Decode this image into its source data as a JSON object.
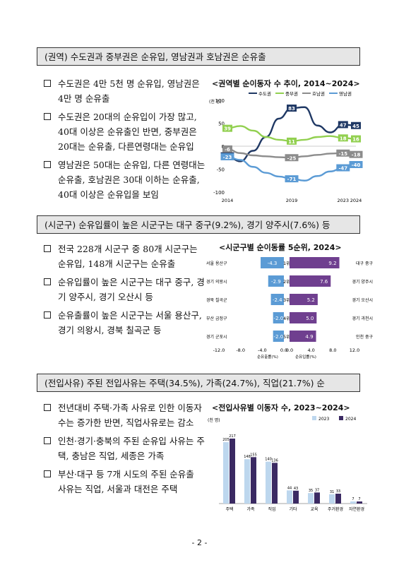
{
  "sections": [
    {
      "header": "(권역) 수도권과 중부권은 순유입, 영남권과 호남권은 순유출",
      "bullets": [
        "수도권은 4만 5천 명 순유입, 영남권은 4만 명 순유출",
        "수도권은 20대의 순유입이 가장 많고, 40대 이상은 순유출인 반면, 중부권은 20대는 순유출, 다른연령대는 순유입",
        "영남권은 50대는 순유입, 다른 연령대는 순유출, 호남권은 30대 이하는 순유출, 40대 이상은 순유입을 보임"
      ]
    },
    {
      "header": "(시군구) 순유입률이 높은 시군구는 대구 중구(9.2%), 경기 양주시(7.6%) 등",
      "bullets": [
        "전국 228개 시군구 중 80개 시군구는 순유입, 148개 시군구는 순유출",
        "순유입률이 높은 시군구는 대구 중구, 경기 양주시, 경기 오산시 등",
        "순유출률이 높은 시군구는 서울 용산구, 경기 의왕시, 경북 칠곡군 등"
      ]
    },
    {
      "header": "(전입사유) 주된 전입사유는 주택(34.5%), 가족(24.7%), 직업(21.7%) 순",
      "bullets": [
        "전년대비 주택·가족 사유로 인한 이동자 수는 증가한 반면, 직업사유로는 감소",
        "인천·경기·충북의 주된 순유입 사유는 주택, 충남은 직업, 세종은 가족",
        "부산·대구 등 7개 시도의 주된 순유출 사유는 직업, 서울과 대전은 주택"
      ]
    }
  ],
  "page_number": "- 2 -",
  "chart_data": [
    {
      "type": "line",
      "title": "<권역별 순이동자 수 추이, 2014~2024>",
      "unit_label": "(천 명)",
      "x_tick_labels": [
        "2014",
        "2019",
        "2023",
        "2024"
      ],
      "x": [
        2014,
        2015,
        2016,
        2017,
        2018,
        2019,
        2020,
        2021,
        2022,
        2023,
        2024
      ],
      "ylim": [
        -100,
        100
      ],
      "y_ticks": [
        100,
        50,
        0,
        -50,
        -100
      ],
      "legend": "top",
      "series": [
        {
          "name": "수도권",
          "color": "#1f3864",
          "values": [
            -21,
            -33,
            -10,
            20,
            60,
            83,
            85,
            45,
            30,
            47,
            45
          ]
        },
        {
          "name": "중부권",
          "color": "#92d050",
          "values": [
            39,
            44,
            34,
            20,
            14,
            11,
            14,
            20,
            22,
            18,
            16
          ]
        },
        {
          "name": "호남권",
          "color": "#8c8c8c",
          "values": [
            -6,
            -15,
            -20,
            -22,
            -24,
            -25,
            -22,
            -19,
            -16,
            -15,
            -18
          ]
        },
        {
          "name": "영남권",
          "color": "#5b9bd5",
          "values": [
            -23,
            -30,
            -45,
            -58,
            -66,
            -71,
            -75,
            -65,
            -55,
            -47,
            -40
          ]
        }
      ],
      "data_labels": [
        {
          "series": "수도권",
          "index": 0,
          "text": "-21"
        },
        {
          "series": "수도권",
          "index": 5,
          "text": "83"
        },
        {
          "series": "수도권",
          "index": 9,
          "text": "47"
        },
        {
          "series": "수도권",
          "index": 10,
          "text": "45"
        },
        {
          "series": "중부권",
          "index": 0,
          "text": "39"
        },
        {
          "series": "중부권",
          "index": 5,
          "text": "11"
        },
        {
          "series": "중부권",
          "index": 9,
          "text": "18"
        },
        {
          "series": "중부권",
          "index": 10,
          "text": "16"
        },
        {
          "series": "호남권",
          "index": 0,
          "text": "-6"
        },
        {
          "series": "호남권",
          "index": 5,
          "text": "-25"
        },
        {
          "series": "호남권",
          "index": 9,
          "text": "-15"
        },
        {
          "series": "호남권",
          "index": 10,
          "text": "-18"
        },
        {
          "series": "영남권",
          "index": 0,
          "text": "-23"
        },
        {
          "series": "영남권",
          "index": 5,
          "text": "-71"
        },
        {
          "series": "영남권",
          "index": 9,
          "text": "-47"
        },
        {
          "series": "영남권",
          "index": 10,
          "text": "-40"
        }
      ]
    },
    {
      "type": "bar",
      "title": "<시군구별 순이동률 5순위, 2024>",
      "ranks": [
        "1위",
        "2위",
        "3위",
        "4위",
        "5위"
      ],
      "left": {
        "xlabel": "순유출률(%)",
        "categories": [
          "서울 용산구",
          "경기 의왕시",
          "경북 칠곡군",
          "부산 금정구",
          "경기 군포시"
        ],
        "values": [
          -4.3,
          -2.9,
          -2.4,
          -2.0,
          -2.0
        ],
        "labels": [
          "-4.3",
          "-2.9",
          "-2.4",
          "-2.0",
          "-2.0"
        ],
        "color": "#5b9bd5",
        "xlim": [
          -12,
          0
        ],
        "ticks": [
          "-12.0",
          "-8.0",
          "-4.0",
          "0.0"
        ]
      },
      "right": {
        "xlabel": "순유입률(%)",
        "categories": [
          "대구 중구",
          "경기 양주시",
          "경기 오산시",
          "경기 과천시",
          "인천 중구"
        ],
        "values": [
          9.2,
          7.6,
          5.2,
          5.0,
          4.9
        ],
        "labels": [
          "9.2",
          "7.6",
          "5.2",
          "5.0",
          "4.9"
        ],
        "color": "#6f3f8f",
        "xlim": [
          0,
          12
        ],
        "ticks": [
          "0.0",
          "4.0",
          "8.0",
          "12.0"
        ]
      }
    },
    {
      "type": "bar",
      "title": "<전입사유별 이동자 수, 2023~2024>",
      "unit_label": "(천 명)",
      "categories": [
        "주택",
        "가족",
        "직업",
        "기타",
        "교육",
        "주거환경",
        "자연환경"
      ],
      "ylim": [
        0,
        250
      ],
      "series": [
        {
          "name": "2023",
          "color": "#bdd7ee",
          "values": [
            205,
            148,
            140,
            44,
            35,
            31,
            7
          ],
          "labels": [
            "205",
            "148",
            "140",
            "44",
            "35",
            "31",
            "7"
          ]
        },
        {
          "name": "2024",
          "color": "#3b2a63",
          "values": [
            217,
            155,
            136,
            43,
            37,
            33,
            7
          ],
          "labels": [
            "217",
            "155",
            "136",
            "43",
            "37",
            "33",
            "7"
          ]
        }
      ],
      "legend": "top-right"
    }
  ]
}
